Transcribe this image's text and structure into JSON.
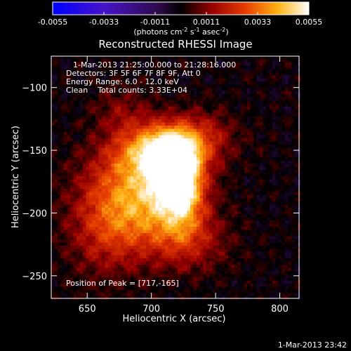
{
  "chart_data": {
    "type": "heatmap",
    "title": "Reconstructed RHESSI Image",
    "xlabel": "Heliocentric X (arcsec)",
    "ylabel": "Heliocentric Y (arcsec)",
    "xlim": [
      622,
      815
    ],
    "ylim": [
      -268,
      -75
    ],
    "x_ticks": [
      650,
      700,
      750,
      800
    ],
    "y_ticks": [
      -100,
      -150,
      -200,
      -250
    ],
    "colorbar": {
      "ticks": [
        "-0.0055",
        "-0.0033",
        "-0.0011",
        "0.0011",
        "0.0033",
        "0.0055"
      ],
      "range": [
        -0.0055,
        0.0055
      ],
      "unit_prefix": "(photons cm",
      "unit_exp1": "-2",
      "unit_mid": " s",
      "unit_exp2": "-1",
      "unit_mid2": " asec",
      "unit_exp3": "-2",
      "unit_suffix": ")"
    },
    "annotations": {
      "time_range": "1-Mar-2013 21:25:00.000 to 21:28:16.000",
      "detectors": "Detectors: 3F 5F 6F 7F 8F 9F, Att 0",
      "energy": "Energy Range: 6.0 - 12.0 keV",
      "clean": "Clean    Total counts: 3.33E+04",
      "peak": "Position of Peak = [717,-165]"
    },
    "peak": [
      717,
      -165
    ],
    "sources": [
      {
        "x": 717,
        "y": -165,
        "amp": 0.0055,
        "sx": 12,
        "sy": 16
      },
      {
        "x": 706,
        "y": -150,
        "amp": 0.0036,
        "sx": 22,
        "sy": 14
      },
      {
        "x": 724,
        "y": -185,
        "amp": 0.003,
        "sx": 12,
        "sy": 22
      },
      {
        "x": 690,
        "y": -175,
        "amp": 0.0028,
        "sx": 28,
        "sy": 22
      },
      {
        "x": 735,
        "y": -140,
        "amp": 0.0018,
        "sx": 20,
        "sy": 14
      },
      {
        "x": 700,
        "y": -205,
        "amp": 0.002,
        "sx": 28,
        "sy": 20
      },
      {
        "x": 665,
        "y": -215,
        "amp": 0.0016,
        "sx": 22,
        "sy": 26
      },
      {
        "x": 730,
        "y": -225,
        "amp": 0.0012,
        "sx": 22,
        "sy": 16
      },
      {
        "x": 678,
        "y": -120,
        "amp": 0.001,
        "sx": 16,
        "sy": 14
      }
    ]
  },
  "footer": {
    "timestamp": "1-Mar-2013 23:42"
  }
}
